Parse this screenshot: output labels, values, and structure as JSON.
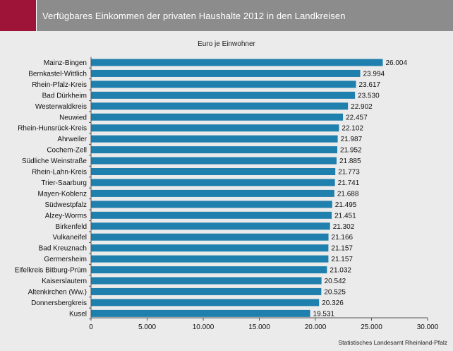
{
  "header": {
    "title": "Verfügbares Einkommen der privaten Haushalte 2012 in den Landkreisen"
  },
  "colors": {
    "accent": "#9e1438",
    "header_bg": "#8c8c8c",
    "bar": "#1f7fad",
    "background": "#ebebeb"
  },
  "source": "Statistisches Landesamt Rheinland-Pfalz",
  "chart_data": {
    "type": "bar",
    "orientation": "horizontal",
    "title": "Verfügbares Einkommen der privaten Haushalte 2012 in den Landkreisen",
    "subtitle": "Euro je Einwohner",
    "categories": [
      "Mainz-Bingen",
      "Bernkastel-Wittlich",
      "Rhein-Pfalz-Kreis",
      "Bad Dürkheim",
      "Westerwaldkreis",
      "Neuwied",
      "Rhein-Hunsrück-Kreis",
      "Ahrweiler",
      "Cochem-Zell",
      "Südliche Weinstraße",
      "Rhein-Lahn-Kreis",
      "Trier-Saarburg",
      "Mayen-Koblenz",
      "Südwestpfalz",
      "Alzey-Worms",
      "Birkenfeld",
      "Vulkaneifel",
      "Bad Kreuznach",
      "Germersheim",
      "Eifelkreis Bitburg-Prüm",
      "Kaiserslautern",
      "Altenkirchen (Ww.)",
      "Donnersbergkreis",
      "Kusel"
    ],
    "values": [
      26004,
      23994,
      23617,
      23530,
      22902,
      22457,
      22102,
      21987,
      21952,
      21885,
      21773,
      21741,
      21688,
      21495,
      21451,
      21302,
      21166,
      21157,
      21157,
      21032,
      20542,
      20525,
      20326,
      19531
    ],
    "value_labels": [
      "26.004",
      "23.994",
      "23.617",
      "23.530",
      "22.902",
      "22.457",
      "22.102",
      "21.987",
      "21.952",
      "21.885",
      "21.773",
      "21.741",
      "21.688",
      "21.495",
      "21.451",
      "21.302",
      "21.166",
      "21.157",
      "21.157",
      "21.032",
      "20.542",
      "20.525",
      "20.326",
      "19.531"
    ],
    "xlim": [
      0,
      30000
    ],
    "xticks": [
      0,
      5000,
      10000,
      15000,
      20000,
      25000,
      30000
    ],
    "xtick_labels": [
      "0",
      "5.000",
      "10.000",
      "15.000",
      "20.000",
      "25.000",
      "30.000"
    ],
    "grid": false,
    "legend": "none"
  }
}
